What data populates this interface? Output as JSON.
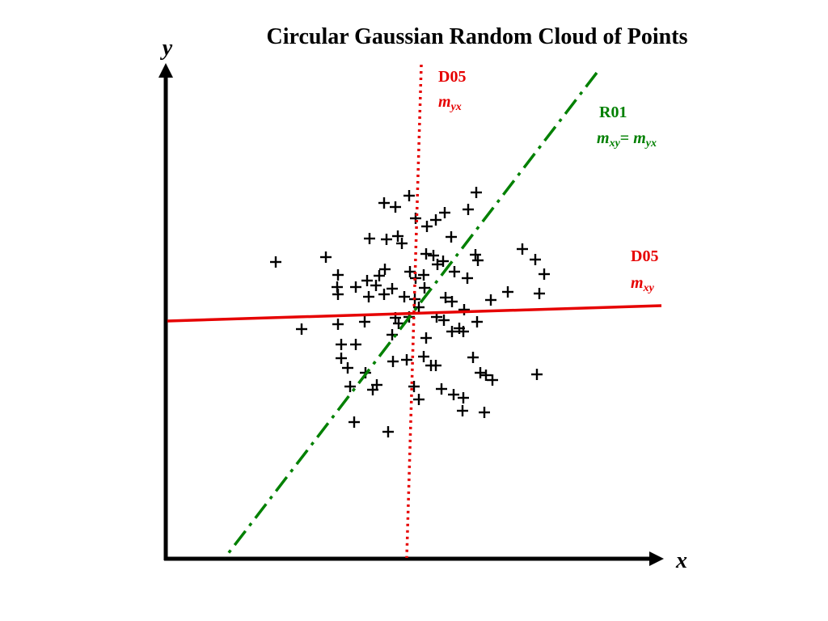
{
  "title": "Circular Gaussian Random Cloud of Points",
  "axes": {
    "x_label": "x",
    "y_label": "y"
  },
  "colors": {
    "red": "#e60000",
    "green": "#008000",
    "black": "#000000"
  },
  "lines": [
    {
      "id": "d05-yx",
      "name": "D05",
      "slope_main": "m",
      "slope_sub": "yx",
      "color": "#e60000",
      "style": "dotted"
    },
    {
      "id": "r01",
      "name": "R01",
      "slope_main": "m",
      "slope_sub": "xy",
      "eq": "= ",
      "slope_main2": "m",
      "slope_sub2": "yx",
      "color": "#008000",
      "style": "dash-dot"
    },
    {
      "id": "d05-xy",
      "name": "D05",
      "slope_main": "m",
      "slope_sub": "xy",
      "color": "#e60000",
      "style": "solid"
    }
  ],
  "points": [
    [
      475,
      251
    ],
    [
      489,
      256
    ],
    [
      506,
      242
    ],
    [
      589,
      238
    ],
    [
      579,
      259
    ],
    [
      550,
      263
    ],
    [
      539,
      272
    ],
    [
      514,
      270
    ],
    [
      528,
      280
    ],
    [
      457,
      295
    ],
    [
      478,
      296
    ],
    [
      492,
      292
    ],
    [
      497,
      301
    ],
    [
      558,
      293
    ],
    [
      588,
      315
    ],
    [
      527,
      314
    ],
    [
      536,
      316
    ],
    [
      646,
      308
    ],
    [
      662,
      321
    ],
    [
      673,
      339
    ],
    [
      341,
      324
    ],
    [
      403,
      318
    ],
    [
      418,
      340
    ],
    [
      417,
      355
    ],
    [
      418,
      364
    ],
    [
      440,
      355
    ],
    [
      454,
      347
    ],
    [
      465,
      353
    ],
    [
      469,
      341
    ],
    [
      476,
      333
    ],
    [
      485,
      357
    ],
    [
      507,
      336
    ],
    [
      514,
      344
    ],
    [
      524,
      340
    ],
    [
      541,
      327
    ],
    [
      548,
      323
    ],
    [
      562,
      336
    ],
    [
      578,
      344
    ],
    [
      591,
      322
    ],
    [
      456,
      367
    ],
    [
      475,
      364
    ],
    [
      500,
      367
    ],
    [
      513,
      370
    ],
    [
      518,
      380
    ],
    [
      525,
      356
    ],
    [
      551,
      368
    ],
    [
      559,
      373
    ],
    [
      574,
      383
    ],
    [
      607,
      371
    ],
    [
      628,
      361
    ],
    [
      667,
      363
    ],
    [
      373,
      407
    ],
    [
      418,
      401
    ],
    [
      451,
      398
    ],
    [
      489,
      393
    ],
    [
      493,
      400
    ],
    [
      506,
      392
    ],
    [
      540,
      392
    ],
    [
      549,
      396
    ],
    [
      559,
      410
    ],
    [
      568,
      406
    ],
    [
      573,
      410
    ],
    [
      590,
      398
    ],
    [
      422,
      426
    ],
    [
      440,
      426
    ],
    [
      485,
      414
    ],
    [
      527,
      418
    ],
    [
      422,
      443
    ],
    [
      430,
      455
    ],
    [
      486,
      447
    ],
    [
      503,
      445
    ],
    [
      524,
      441
    ],
    [
      533,
      452
    ],
    [
      539,
      452
    ],
    [
      585,
      442
    ],
    [
      594,
      461
    ],
    [
      601,
      464
    ],
    [
      609,
      470
    ],
    [
      664,
      463
    ],
    [
      452,
      461
    ],
    [
      433,
      478
    ],
    [
      461,
      482
    ],
    [
      466,
      476
    ],
    [
      512,
      478
    ],
    [
      518,
      494
    ],
    [
      546,
      481
    ],
    [
      561,
      488
    ],
    [
      573,
      492
    ],
    [
      572,
      508
    ],
    [
      599,
      510
    ],
    [
      438,
      522
    ],
    [
      480,
      534
    ]
  ]
}
